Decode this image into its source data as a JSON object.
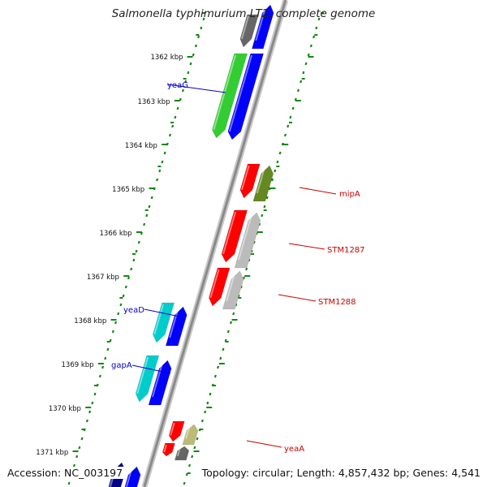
{
  "title": "Salmonella typhimurium LT2, complete genome",
  "footer": {
    "accession": "Accession: NC_003197",
    "summary": "Topology: circular; Length: 4,857,432 bp; Genes: 4,541"
  },
  "ticks": [
    {
      "label": "1362 kbp"
    },
    {
      "label": "1363 kbp"
    },
    {
      "label": "1364 kbp"
    },
    {
      "label": "1365 kbp"
    },
    {
      "label": "1366 kbp"
    },
    {
      "label": "1367 kbp"
    },
    {
      "label": "1368 kbp"
    },
    {
      "label": "1369 kbp"
    },
    {
      "label": "1370 kbp"
    },
    {
      "label": "1371 kbp"
    }
  ],
  "gene_labels": [
    {
      "name": "yeaG",
      "color": "#0000cc",
      "side": "left"
    },
    {
      "name": "mipA",
      "color": "#cc0000",
      "side": "right"
    },
    {
      "name": "STM1287",
      "color": "#cc0000",
      "side": "right"
    },
    {
      "name": "STM1288",
      "color": "#cc0000",
      "side": "right"
    },
    {
      "name": "yeaD",
      "color": "#0000cc",
      "side": "left"
    },
    {
      "name": "gapA",
      "color": "#0000cc",
      "side": "left"
    },
    {
      "name": "yeaA",
      "color": "#cc0000",
      "side": "right"
    }
  ],
  "colors": {
    "backbone": "#8a8a8a",
    "tick_green": "#118811",
    "cog_green": "#33cc33",
    "cog_blue": "#0000ff",
    "cog_red": "#ff0000",
    "cog_cyan": "#00cccc",
    "cog_olive": "#668822",
    "cog_grey": "#bbbbbb",
    "cog_khaki": "#bbbb77",
    "cog_darkgrey": "#666666",
    "cog_navy": "#000088"
  }
}
